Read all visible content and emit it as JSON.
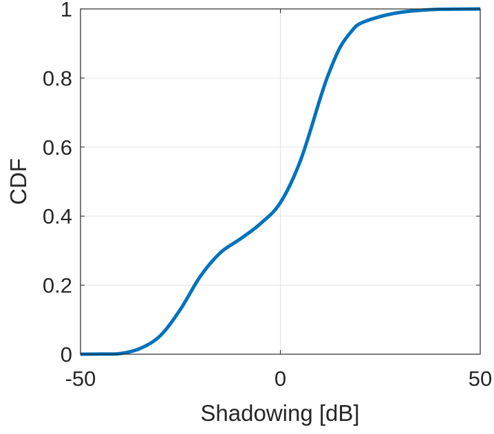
{
  "chart_data": {
    "type": "line",
    "title": "",
    "xlabel": "Shadowing [dB]",
    "ylabel": "CDF",
    "xlim": [
      -50,
      50
    ],
    "ylim": [
      0,
      1
    ],
    "xticks": [
      -50,
      0,
      50
    ],
    "xtick_labels": [
      "-50",
      "0",
      "50"
    ],
    "yticks": [
      0,
      0.2,
      0.4,
      0.6,
      0.8,
      1
    ],
    "ytick_labels": [
      "0",
      "0.2",
      "0.4",
      "0.6",
      "0.8",
      "1"
    ],
    "grid": true,
    "series": [
      {
        "color": "#0072BD",
        "x": [
          -50,
          -45,
          -40,
          -35,
          -30,
          -25,
          -20,
          -15,
          -10,
          -5,
          0,
          5,
          10,
          12,
          15,
          18,
          20,
          25,
          30,
          35,
          40,
          50
        ],
        "y": [
          0,
          0.0005,
          0.002,
          0.017,
          0.054,
          0.13,
          0.226,
          0.294,
          0.334,
          0.378,
          0.439,
          0.56,
          0.742,
          0.81,
          0.89,
          0.938,
          0.958,
          0.978,
          0.99,
          0.996,
          0.999,
          1
        ]
      }
    ]
  }
}
